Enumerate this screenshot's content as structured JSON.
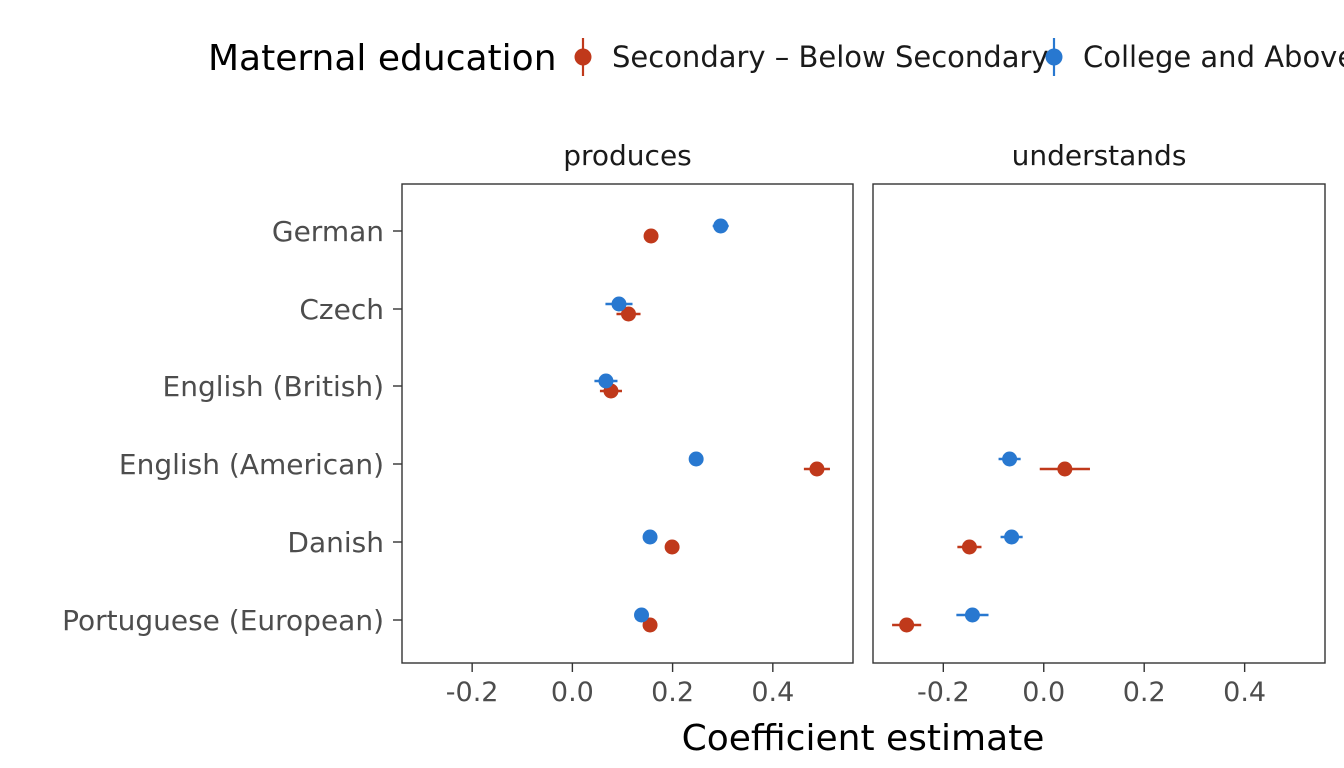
{
  "chart_data": {
    "type": "scatter",
    "xlabel": "Coefficient estimate",
    "ylabel": "",
    "xlim": [
      -0.34,
      0.56
    ],
    "xticks": [
      -0.2,
      0.0,
      0.2,
      0.4
    ],
    "xtick_labels": [
      "-0.2",
      "0.0",
      "0.2",
      "0.4"
    ],
    "categories": [
      "German",
      "Czech",
      "English (British)",
      "English (American)",
      "Danish",
      "Portuguese (European)"
    ],
    "legend": {
      "title": "Maternal education",
      "position": "top",
      "entries": [
        {
          "name": "Secondary – Below Secondary",
          "color": "#c0391b"
        },
        {
          "name": "College and Above",
          "color": "#2878d0"
        }
      ]
    },
    "panels": [
      {
        "label": "produces",
        "series": [
          {
            "name": "Secondary – Below Secondary",
            "color": "#c0391b",
            "points": [
              {
                "category": "German",
                "estimate": 0.157,
                "lo": 0.152,
                "hi": 0.162
              },
              {
                "category": "Czech",
                "estimate": 0.112,
                "lo": 0.088,
                "hi": 0.136
              },
              {
                "category": "English (British)",
                "estimate": 0.077,
                "lo": 0.055,
                "hi": 0.099
              },
              {
                "category": "English (American)",
                "estimate": 0.488,
                "lo": 0.462,
                "hi": 0.514
              },
              {
                "category": "Danish",
                "estimate": 0.199,
                "lo": 0.194,
                "hi": 0.204
              },
              {
                "category": "Portuguese (European)",
                "estimate": 0.155,
                "lo": 0.15,
                "hi": 0.16
              }
            ]
          },
          {
            "name": "College and Above",
            "color": "#2878d0",
            "points": [
              {
                "category": "German",
                "estimate": 0.296,
                "lo": 0.28,
                "hi": 0.312
              },
              {
                "category": "Czech",
                "estimate": 0.093,
                "lo": 0.066,
                "hi": 0.12
              },
              {
                "category": "English (British)",
                "estimate": 0.067,
                "lo": 0.044,
                "hi": 0.09
              },
              {
                "category": "English (American)",
                "estimate": 0.247,
                "lo": 0.242,
                "hi": 0.252
              },
              {
                "category": "Danish",
                "estimate": 0.155,
                "lo": 0.15,
                "hi": 0.16
              },
              {
                "category": "Portuguese (European)",
                "estimate": 0.138,
                "lo": 0.128,
                "hi": 0.148
              }
            ]
          }
        ]
      },
      {
        "label": "understands",
        "series": [
          {
            "name": "Secondary – Below Secondary",
            "color": "#c0391b",
            "points": [
              {
                "category": "English (American)",
                "estimate": 0.042,
                "lo": -0.008,
                "hi": 0.092
              },
              {
                "category": "Danish",
                "estimate": -0.148,
                "lo": -0.172,
                "hi": -0.124
              },
              {
                "category": "Portuguese (European)",
                "estimate": -0.273,
                "lo": -0.302,
                "hi": -0.244
              }
            ]
          },
          {
            "name": "College and Above",
            "color": "#2878d0",
            "points": [
              {
                "category": "English (American)",
                "estimate": -0.068,
                "lo": -0.09,
                "hi": -0.046
              },
              {
                "category": "Danish",
                "estimate": -0.064,
                "lo": -0.086,
                "hi": -0.042
              },
              {
                "category": "Portuguese (European)",
                "estimate": -0.142,
                "lo": -0.174,
                "hi": -0.11
              }
            ]
          }
        ]
      }
    ]
  }
}
